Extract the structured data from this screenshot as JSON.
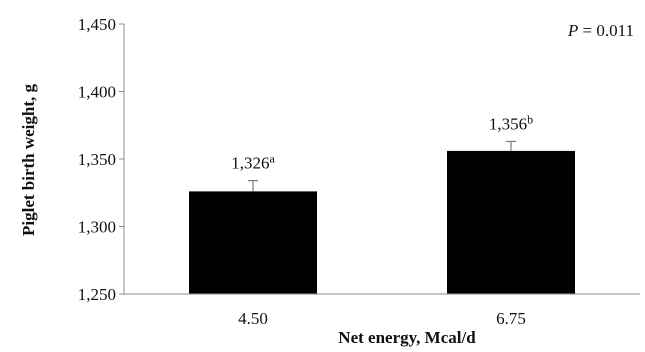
{
  "chart_data": {
    "type": "bar",
    "title": "",
    "xlabel": "Net energy, Mcal/d",
    "ylabel": "Piglet birth weight, g",
    "categories": [
      "4.50",
      "6.75"
    ],
    "values": [
      1326,
      1356
    ],
    "errors": [
      8,
      7
    ],
    "data_labels": [
      {
        "text": "1,326",
        "superscript": "a"
      },
      {
        "text": "1,356",
        "superscript": "b"
      }
    ],
    "ylim": [
      1250,
      1450
    ],
    "yticks": [
      1250,
      1300,
      1350,
      1400,
      1450
    ],
    "ytick_labels": [
      "1,250",
      "1,300",
      "1,350",
      "1,400",
      "1,450"
    ],
    "grid": false,
    "bar_color": "#000000",
    "annotation": {
      "p_label": "P",
      "p_value": " = 0.011"
    }
  }
}
